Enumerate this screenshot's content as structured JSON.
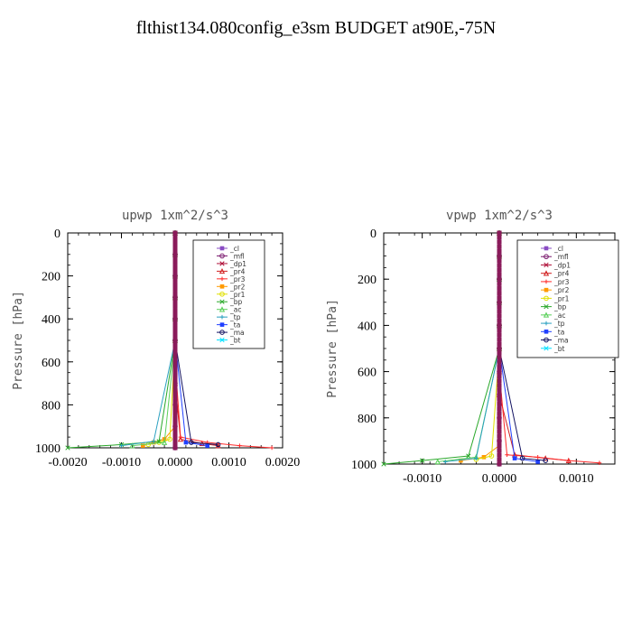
{
  "page_title": "flthist134.080config_e3sm  BUDGET at90E,-75N",
  "colors": {
    "_cl": "#8a4cc4",
    "_mfl": "#7a1a6e",
    "_dp1": "#b0123a",
    "_pr4": "#d11f1f",
    "_pr3": "#ff2a2a",
    "_pr2": "#ff9a00",
    "_pr1": "#e0e000",
    "_bp": "#2aa82a",
    "_ac": "#5ad05a",
    "_tp": "#2aa0c0",
    "_ta": "#2040ff",
    "_ma": "#101060",
    "_bt": "#00e0ff"
  },
  "chart_data": [
    {
      "type": "line",
      "title": "upwp   1xm^2/s^3",
      "xlabel": "",
      "ylabel": "Pressure [hPa]",
      "xlim": [
        -0.002,
        0.002
      ],
      "ylim": [
        1000,
        0
      ],
      "xticks": [
        -0.002,
        -0.001,
        0.0,
        0.001,
        0.002
      ],
      "xtick_labels": [
        "-0.0020",
        "-0.0010",
        "0.0000",
        "0.0010",
        "0.0020"
      ],
      "yticks": [
        0,
        200,
        400,
        600,
        800,
        1000
      ],
      "ytick_labels": [
        "0",
        "200",
        "400",
        "600",
        "800",
        "1000"
      ],
      "legend_position": "top-right",
      "series": [
        {
          "name": "_cl",
          "x": [
            0,
            0,
            0,
            0,
            0,
            0,
            0,
            0,
            0,
            0,
            0
          ],
          "y": [
            0,
            100,
            200,
            300,
            400,
            500,
            600,
            700,
            800,
            900,
            1000
          ]
        },
        {
          "name": "_mfl",
          "x": [
            0,
            0,
            0,
            0,
            0,
            0,
            0,
            0,
            0,
            0,
            0
          ],
          "y": [
            0,
            100,
            200,
            300,
            400,
            500,
            600,
            700,
            800,
            900,
            1000
          ]
        },
        {
          "name": "_dp1",
          "x": [
            0,
            0,
            0,
            0,
            0,
            0,
            0,
            0,
            0,
            0,
            0
          ],
          "y": [
            0,
            100,
            200,
            300,
            400,
            500,
            600,
            700,
            800,
            900,
            1000
          ]
        },
        {
          "name": "_pr4",
          "x": [
            0,
            0,
            0,
            0,
            0,
            0,
            0,
            0,
            0.0001,
            0.0005,
            0.0008
          ],
          "y": [
            0,
            100,
            200,
            300,
            400,
            500,
            600,
            700,
            960,
            980,
            990
          ]
        },
        {
          "name": "_pr3",
          "x": [
            0,
            0,
            0,
            0,
            0,
            0,
            0,
            0.0001,
            0.0006,
            0.0012,
            0.0018
          ],
          "y": [
            0,
            100,
            200,
            300,
            400,
            500,
            600,
            950,
            975,
            990,
            1000
          ]
        },
        {
          "name": "_pr2",
          "x": [
            0,
            0,
            0,
            0,
            0,
            0,
            0,
            -0.0002,
            -0.0004,
            -0.0006
          ],
          "y": [
            0,
            100,
            200,
            300,
            400,
            500,
            900,
            960,
            975,
            990
          ]
        },
        {
          "name": "_pr1",
          "x": [
            0,
            0,
            0,
            0,
            0,
            0,
            -0.0001,
            -0.0003,
            -0.0005
          ],
          "y": [
            0,
            100,
            200,
            300,
            400,
            500,
            960,
            975,
            985
          ]
        },
        {
          "name": "_bp",
          "x": [
            0,
            0,
            0,
            0,
            0,
            0,
            -0.0003,
            -0.001,
            -0.002
          ],
          "y": [
            0,
            100,
            200,
            300,
            400,
            500,
            970,
            985,
            1000
          ]
        },
        {
          "name": "_ac",
          "x": [
            0,
            0,
            0,
            0,
            0,
            0,
            -0.0002,
            -0.0008
          ],
          "y": [
            0,
            100,
            200,
            300,
            400,
            500,
            975,
            990
          ]
        },
        {
          "name": "_tp",
          "x": [
            0,
            0,
            0,
            0,
            0,
            0,
            -0.0004,
            -0.001
          ],
          "y": [
            0,
            100,
            200,
            300,
            400,
            500,
            970,
            990
          ]
        },
        {
          "name": "_ta",
          "x": [
            0,
            0,
            0,
            0,
            0,
            0,
            0.0002,
            0.0006
          ],
          "y": [
            0,
            100,
            200,
            300,
            400,
            500,
            975,
            990
          ]
        },
        {
          "name": "_ma",
          "x": [
            0,
            0,
            0,
            0,
            0,
            0,
            0.0003,
            0.0008
          ],
          "y": [
            0,
            100,
            200,
            300,
            400,
            500,
            975,
            985
          ]
        },
        {
          "name": "_bt",
          "x": [
            0,
            0,
            0,
            0,
            0,
            0,
            0
          ],
          "y": [
            0,
            100,
            200,
            300,
            400,
            500,
            1000
          ]
        }
      ]
    },
    {
      "type": "line",
      "title": "vpwp   1xm^2/s^3",
      "xlabel": "",
      "ylabel": "Pressure [hPa]",
      "xlim": [
        -0.0015,
        0.0015
      ],
      "ylim": [
        1000,
        0
      ],
      "xticks": [
        -0.001,
        0.0,
        0.001
      ],
      "xtick_labels": [
        "-0.0010",
        "0.0000",
        "0.0010"
      ],
      "yticks": [
        0,
        200,
        400,
        600,
        800,
        1000
      ],
      "ytick_labels": [
        "0",
        "200",
        "400",
        "600",
        "800",
        "1000"
      ],
      "legend_position": "top-right",
      "series": [
        {
          "name": "_cl",
          "x": [
            0,
            0,
            0,
            0,
            0,
            0,
            0,
            0,
            0,
            0,
            0
          ],
          "y": [
            0,
            100,
            200,
            300,
            400,
            500,
            600,
            700,
            800,
            900,
            1000
          ]
        },
        {
          "name": "_mfl",
          "x": [
            0,
            0,
            0,
            0,
            0,
            0,
            0,
            0,
            0,
            0,
            0
          ],
          "y": [
            0,
            100,
            200,
            300,
            400,
            500,
            600,
            700,
            800,
            900,
            1000
          ]
        },
        {
          "name": "_dp1",
          "x": [
            0,
            0,
            0,
            0,
            0,
            0,
            0,
            0,
            0,
            0,
            0
          ],
          "y": [
            0,
            100,
            200,
            300,
            400,
            500,
            600,
            700,
            800,
            900,
            1000
          ]
        },
        {
          "name": "_pr4",
          "x": [
            0,
            0,
            0,
            0,
            0,
            0,
            0,
            0,
            0.0002,
            0.0006,
            0.0009
          ],
          "y": [
            0,
            100,
            200,
            300,
            400,
            500,
            600,
            700,
            960,
            975,
            985
          ]
        },
        {
          "name": "_pr3",
          "x": [
            0,
            0,
            0,
            0,
            0,
            0,
            0,
            0.0001,
            0.0005,
            0.0009,
            0.0013
          ],
          "y": [
            0,
            100,
            200,
            300,
            400,
            500,
            600,
            960,
            970,
            985,
            995
          ]
        },
        {
          "name": "_pr2",
          "x": [
            0,
            0,
            0,
            0,
            0,
            0,
            0,
            -0.0002,
            -0.0005
          ],
          "y": [
            0,
            100,
            200,
            300,
            400,
            500,
            920,
            970,
            985
          ]
        },
        {
          "name": "_pr1",
          "x": [
            0,
            0,
            0,
            0,
            0,
            0,
            -0.0001,
            -0.0003
          ],
          "y": [
            0,
            100,
            200,
            300,
            400,
            500,
            965,
            980
          ]
        },
        {
          "name": "_bp",
          "x": [
            0,
            0,
            0,
            0,
            0,
            0,
            -0.0004,
            -0.001,
            -0.0015
          ],
          "y": [
            0,
            100,
            200,
            300,
            400,
            500,
            965,
            985,
            1000
          ]
        },
        {
          "name": "_ac",
          "x": [
            0,
            0,
            0,
            0,
            0,
            0,
            -0.0003,
            -0.0008
          ],
          "y": [
            0,
            100,
            200,
            300,
            400,
            500,
            970,
            990
          ]
        },
        {
          "name": "_tp",
          "x": [
            0,
            0,
            0,
            0,
            0,
            0,
            -0.0003,
            -0.0007
          ],
          "y": [
            0,
            100,
            200,
            300,
            400,
            500,
            975,
            990
          ]
        },
        {
          "name": "_ta",
          "x": [
            0,
            0,
            0,
            0,
            0,
            0,
            0.0002,
            0.0005
          ],
          "y": [
            0,
            100,
            200,
            300,
            400,
            500,
            975,
            990
          ]
        },
        {
          "name": "_ma",
          "x": [
            0,
            0,
            0,
            0,
            0,
            0,
            0.0003,
            0.0006
          ],
          "y": [
            0,
            100,
            200,
            300,
            400,
            500,
            975,
            985
          ]
        },
        {
          "name": "_bt",
          "x": [
            0,
            0,
            0,
            0,
            0,
            0,
            0
          ],
          "y": [
            0,
            100,
            200,
            300,
            400,
            500,
            1000
          ]
        }
      ]
    }
  ]
}
